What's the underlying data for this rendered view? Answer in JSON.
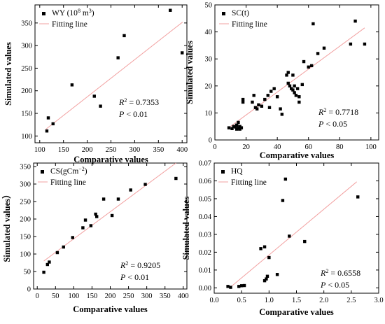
{
  "chart_data": [
    {
      "id": "wy",
      "type": "scatter",
      "xlabel": "Comparative values",
      "ylabel": "Simulated values",
      "xlim": [
        90,
        410
      ],
      "ylim": [
        85,
        390
      ],
      "xticks": [
        100,
        150,
        200,
        250,
        300,
        350,
        400
      ],
      "yticks": [
        100,
        150,
        200,
        250,
        300,
        350
      ],
      "legend": {
        "position": "top-left",
        "series_label": "WY (10",
        "series_label_sup": "8",
        "series_label_end": " m",
        "series_label_sup2": "3",
        "series_label_close": ")",
        "fit_label": "Fitting line"
      },
      "stats": {
        "r2_label": "R",
        "r2_sup": "2",
        "r2_value": " = 0.7353",
        "p_label": "P",
        "p_value": " < 0.01"
      },
      "points": [
        [
          115,
          111
        ],
        [
          118,
          140
        ],
        [
          128,
          127
        ],
        [
          168,
          213
        ],
        [
          215,
          188
        ],
        [
          228,
          166
        ],
        [
          265,
          273
        ],
        [
          278,
          322
        ],
        [
          375,
          378
        ],
        [
          400,
          284
        ]
      ],
      "fit": [
        [
          113,
          115
        ],
        [
          401,
          352
        ]
      ]
    },
    {
      "id": "sc",
      "type": "scatter",
      "xlabel": "Comparative values",
      "ylabel": "Simulated values",
      "xlim": [
        0,
        105
      ],
      "ylim": [
        0,
        50
      ],
      "xticks": [
        0,
        20,
        40,
        60,
        80,
        100
      ],
      "yticks": [
        0,
        10,
        20,
        30,
        40,
        50
      ],
      "legend": {
        "position": "top-left",
        "series_label": "SC(t)",
        "fit_label": "Fitting line"
      },
      "stats": {
        "r2_label": "R",
        "r2_sup": "2",
        "r2_value": " = 0.7718",
        "p_label": "P",
        "p_value": " < 0.05"
      },
      "points": [
        [
          9,
          4.5
        ],
        [
          11,
          4.2
        ],
        [
          12,
          5
        ],
        [
          13,
          4.8
        ],
        [
          14,
          4
        ],
        [
          14,
          5.5
        ],
        [
          15,
          6.5
        ],
        [
          15,
          4.4
        ],
        [
          16,
          4
        ],
        [
          16,
          5
        ],
        [
          17,
          4.5
        ],
        [
          18,
          14
        ],
        [
          18,
          15
        ],
        [
          24,
          14
        ],
        [
          25,
          16.5
        ],
        [
          26,
          12
        ],
        [
          27,
          11.5
        ],
        [
          28,
          13
        ],
        [
          30,
          12.5
        ],
        [
          32,
          15
        ],
        [
          34,
          16.5
        ],
        [
          35,
          12
        ],
        [
          36,
          18
        ],
        [
          38,
          19
        ],
        [
          40,
          16
        ],
        [
          42,
          11.5
        ],
        [
          43,
          9.5
        ],
        [
          46,
          24
        ],
        [
          47,
          25
        ],
        [
          47,
          21
        ],
        [
          48,
          20
        ],
        [
          49,
          19
        ],
        [
          50,
          24
        ],
        [
          50,
          18.5
        ],
        [
          51,
          17.5
        ],
        [
          51,
          20
        ],
        [
          52,
          16.5
        ],
        [
          53,
          19
        ],
        [
          54,
          14
        ],
        [
          54,
          16
        ],
        [
          56,
          20.5
        ],
        [
          57,
          29
        ],
        [
          60,
          27
        ],
        [
          62,
          27.5
        ],
        [
          63,
          43
        ],
        [
          66,
          32
        ],
        [
          70,
          34
        ],
        [
          87,
          35.5
        ],
        [
          90,
          44
        ],
        [
          96,
          35.5
        ]
      ],
      "fit": [
        [
          10,
          5
        ],
        [
          96,
          41.5
        ]
      ]
    },
    {
      "id": "cs",
      "type": "scatter",
      "xlabel": "Comparative values",
      "ylabel": "Simulated values）",
      "xlim": [
        -10,
        410
      ],
      "ylim": [
        0,
        360
      ],
      "xticks": [
        0,
        50,
        100,
        150,
        200,
        250,
        300,
        350,
        400
      ],
      "yticks": [
        0,
        50,
        100,
        150,
        200,
        250,
        300,
        350
      ],
      "legend": {
        "position": "top-left",
        "series_label": "CS(gCm",
        "series_label_sup": "−2",
        "series_label_close": ")",
        "fit_label": "Fitting line"
      },
      "stats": {
        "r2_label": "R",
        "r2_sup": "2",
        "r2_value": " = 0.9205",
        "p_label": "P",
        "p_value": " < 0.01"
      },
      "points": [
        [
          18,
          48
        ],
        [
          28,
          70
        ],
        [
          33,
          77
        ],
        [
          55,
          104
        ],
        [
          72,
          120
        ],
        [
          97,
          147
        ],
        [
          125,
          175
        ],
        [
          132,
          197
        ],
        [
          147,
          181
        ],
        [
          160,
          214
        ],
        [
          163,
          207
        ],
        [
          182,
          257
        ],
        [
          205,
          210
        ],
        [
          222,
          257
        ],
        [
          256,
          283
        ],
        [
          296,
          299
        ],
        [
          380,
          316
        ]
      ],
      "fit": [
        [
          18,
          80
        ],
        [
          380,
          360
        ]
      ]
    },
    {
      "id": "hq",
      "type": "scatter",
      "xlabel": "Comparative values",
      "ylabel": "Simulated values",
      "xlim": [
        0,
        3
      ],
      "ylim": [
        -0.003,
        0.07
      ],
      "xticks": [
        0.0,
        0.5,
        1.0,
        1.5,
        2.0,
        2.5,
        3.0
      ],
      "xticklabels": [
        "0.0",
        "0.5",
        "1.0",
        "1.5",
        "2.0",
        "2.5",
        "3.0"
      ],
      "yticks": [
        0,
        0.01,
        0.02,
        0.03,
        0.04,
        0.05,
        0.06,
        0.07
      ],
      "yticklabels": [
        "0.00",
        "0.01",
        "0.02",
        "0.03",
        "0.04",
        "0.05",
        "0.06",
        "0.07"
      ],
      "legend": {
        "position": "top-left",
        "series_label": "HQ",
        "fit_label": "Fitting line"
      },
      "stats": {
        "r2_label": "R",
        "r2_sup": "2",
        "r2_value": " = 0.6558",
        "p_label": "P",
        "p_value": " < 0.05"
      },
      "points": [
        [
          0.25,
          0.0008
        ],
        [
          0.3,
          0.0003
        ],
        [
          0.45,
          0.0008
        ],
        [
          0.5,
          0.0012
        ],
        [
          0.55,
          0.0013
        ],
        [
          0.85,
          0.022
        ],
        [
          0.92,
          0.023
        ],
        [
          0.92,
          0.004
        ],
        [
          0.95,
          0.005
        ],
        [
          0.97,
          0.0065
        ],
        [
          1.0,
          0.017
        ],
        [
          1.15,
          0.0075
        ],
        [
          1.25,
          0.049
        ],
        [
          1.3,
          0.061
        ],
        [
          1.37,
          0.029
        ],
        [
          1.65,
          0.026
        ],
        [
          2.62,
          0.051
        ]
      ],
      "fit": [
        [
          0.3,
          0.0005
        ],
        [
          2.6,
          0.0595
        ]
      ]
    }
  ]
}
